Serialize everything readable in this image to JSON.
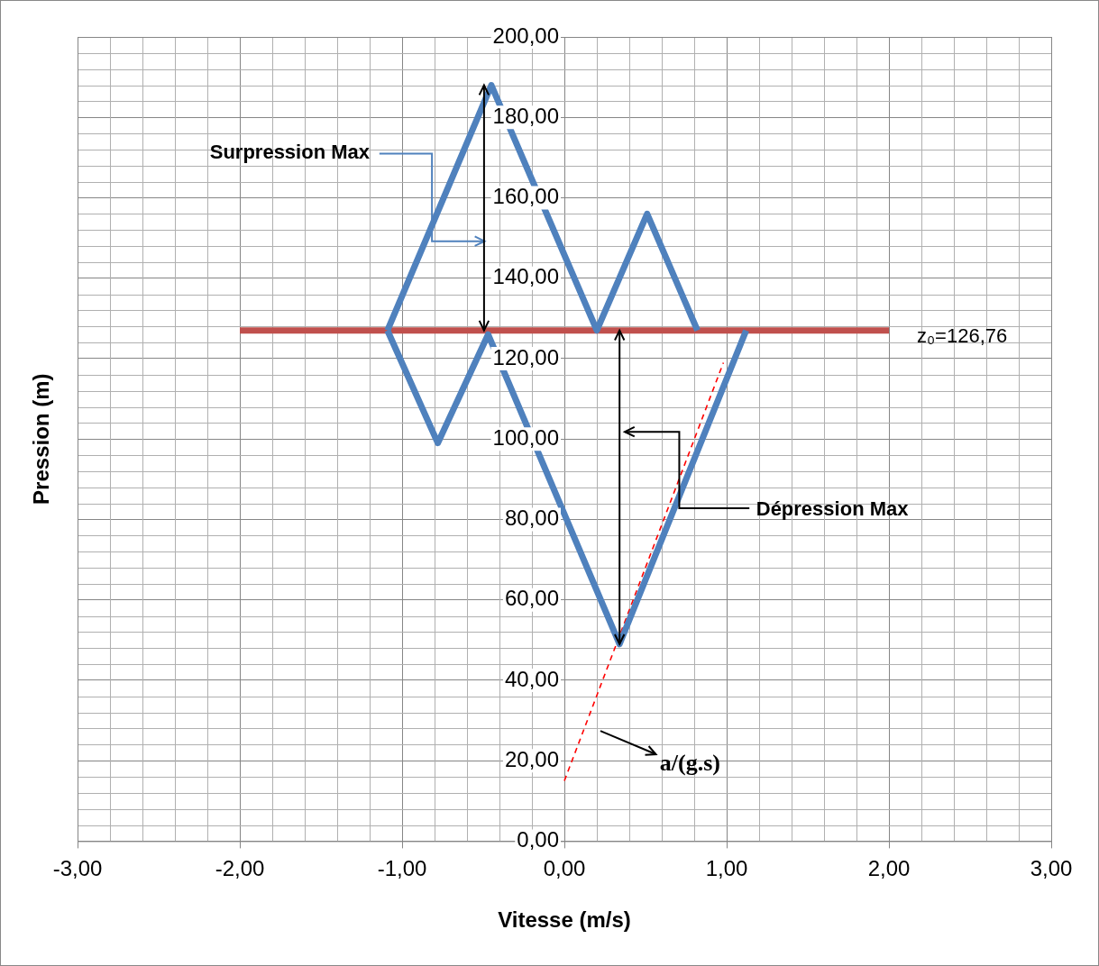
{
  "chart_data": {
    "type": "line",
    "xlabel": "Vitesse (m/s)",
    "ylabel": "Pression (m)",
    "xlim": [
      -3,
      3
    ],
    "ylim": [
      0,
      200
    ],
    "xticks": [
      {
        "value": -3,
        "label": "-3,00"
      },
      {
        "value": -2,
        "label": "-2,00"
      },
      {
        "value": -1,
        "label": "-1,00"
      },
      {
        "value": 0,
        "label": "0,00"
      },
      {
        "value": 1,
        "label": "1,00"
      },
      {
        "value": 2,
        "label": "2,00"
      },
      {
        "value": 3,
        "label": "3,00"
      }
    ],
    "yticks": [
      {
        "value": 0,
        "label": "0,00"
      },
      {
        "value": 20,
        "label": "20,00"
      },
      {
        "value": 40,
        "label": "40,00"
      },
      {
        "value": 60,
        "label": "60,00"
      },
      {
        "value": 80,
        "label": "80,00"
      },
      {
        "value": 100,
        "label": "100,00"
      },
      {
        "value": 120,
        "label": "120,00"
      },
      {
        "value": 140,
        "label": "140,00"
      },
      {
        "value": 160,
        "label": "160,00"
      },
      {
        "value": 180,
        "label": "180,00"
      },
      {
        "value": 200,
        "label": "200,00"
      }
    ],
    "grid": true,
    "legend": false,
    "marker": "none",
    "series": [
      {
        "color": "#4f81bd",
        "line_style": "solid",
        "x": [
          -1.09,
          -0.45,
          0.2,
          0.51,
          0.82
        ],
        "values": [
          127,
          188,
          127,
          156,
          127
        ]
      },
      {
        "color": "#4f81bd",
        "line_style": "solid",
        "x": [
          -1.09,
          -0.78,
          -0.47,
          0.34,
          1.12
        ],
        "values": [
          127,
          99,
          126,
          49,
          127
        ]
      },
      {
        "color": "#c0504d",
        "line_style": "solid",
        "x": [
          -2,
          2
        ],
        "values": [
          127,
          127
        ]
      },
      {
        "color": "#ff0000",
        "line_style": "dashed",
        "x": [
          0,
          0.98
        ],
        "values": [
          15,
          119
        ]
      }
    ],
    "annotations": [
      "Surpression Max",
      "Dépression Max",
      "z₀=126,76",
      "a/(g.s)"
    ]
  }
}
